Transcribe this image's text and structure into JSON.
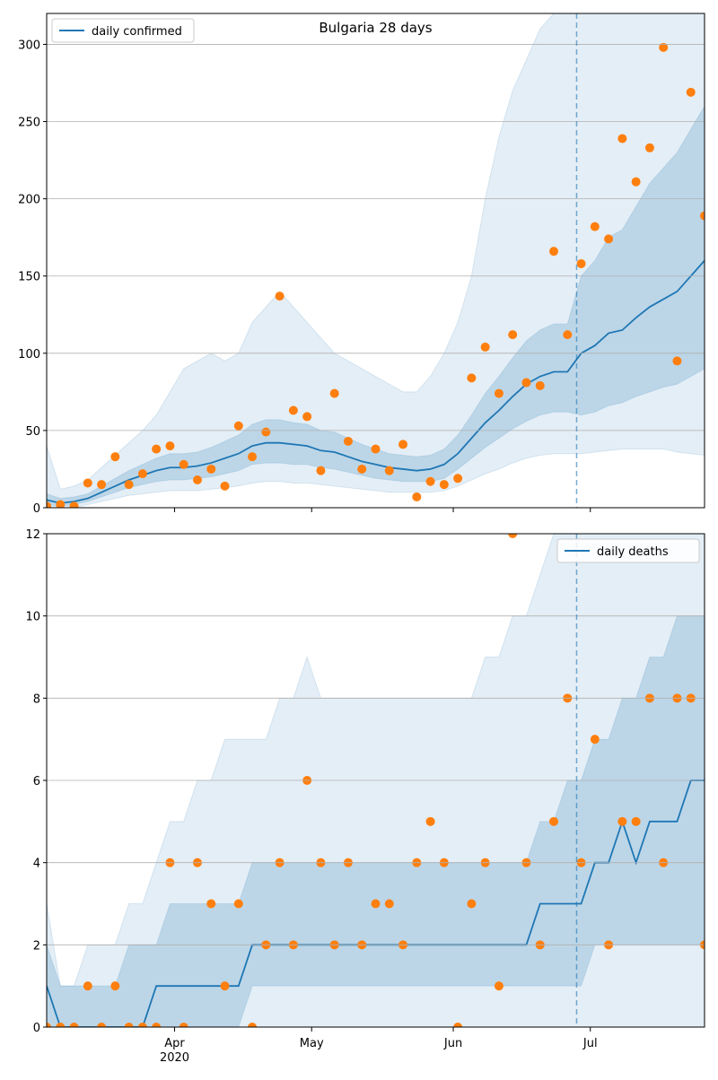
{
  "chart_data": [
    {
      "type": "line",
      "title": "Bulgaria 28 days",
      "legend": "upper left",
      "grid": true,
      "forecast_start": 116,
      "x": [
        0,
        3,
        6,
        9,
        12,
        15,
        18,
        21,
        24,
        27,
        30,
        33,
        36,
        39,
        42,
        45,
        48,
        51,
        54,
        57,
        60,
        63,
        66,
        69,
        72,
        75,
        78,
        81,
        84,
        87,
        90,
        93,
        96,
        99,
        102,
        105,
        108,
        111,
        114,
        117,
        120,
        123,
        126,
        129,
        132,
        135,
        138,
        141,
        144
      ],
      "xlim": [
        0,
        144
      ],
      "ylim": [
        0,
        320
      ],
      "yticks": [
        0,
        50,
        100,
        150,
        200,
        250,
        300
      ],
      "series": [
        {
          "name": "daily confirmed",
          "color": "#1f77b4",
          "values": [
            5,
            3,
            4,
            6,
            10,
            14,
            18,
            21,
            24,
            26,
            26,
            27,
            29,
            32,
            35,
            40,
            42,
            42,
            41,
            40,
            37,
            36,
            33,
            30,
            28,
            26,
            25,
            24,
            25,
            28,
            35,
            45,
            55,
            63,
            72,
            80,
            85,
            88,
            88,
            100,
            105,
            113,
            115,
            123,
            130,
            135,
            140,
            150,
            160
          ]
        }
      ],
      "observed": {
        "color": "#ff7f0e",
        "values": [
          1,
          2,
          1,
          16,
          15,
          33,
          15,
          22,
          38,
          40,
          28,
          18,
          25,
          14,
          53,
          33,
          49,
          137,
          63,
          59,
          24,
          74,
          43,
          25,
          38,
          24,
          41,
          7,
          17,
          15,
          19,
          84,
          104,
          74,
          112,
          81,
          79,
          166,
          112,
          158,
          182,
          174,
          239,
          211,
          233,
          298,
          95,
          269,
          189
        ]
      },
      "bands": [
        {
          "lower": [
            0,
            0,
            0,
            2,
            4,
            6,
            8,
            9,
            10,
            11,
            11,
            11,
            12,
            13,
            14,
            16,
            17,
            17,
            16,
            16,
            15,
            14,
            13,
            12,
            11,
            10,
            10,
            10,
            10,
            11,
            14,
            18,
            22,
            25,
            29,
            32,
            34,
            35,
            35,
            35,
            36,
            37,
            38,
            38,
            38,
            38,
            36,
            35,
            34
          ],
          "upper": [
            40,
            12,
            14,
            18,
            26,
            34,
            42,
            50,
            60,
            75,
            90,
            95,
            100,
            95,
            100,
            120,
            130,
            140,
            130,
            120,
            110,
            100,
            95,
            90,
            85,
            80,
            75,
            75,
            85,
            100,
            120,
            150,
            200,
            240,
            270,
            290,
            310,
            320,
            330,
            350,
            350,
            350,
            350,
            350,
            350,
            350,
            350,
            350,
            350
          ]
        },
        {
          "lower": [
            2,
            1,
            2,
            4,
            7,
            10,
            13,
            15,
            17,
            18,
            18,
            19,
            20,
            22,
            24,
            28,
            29,
            29,
            28,
            28,
            26,
            25,
            23,
            21,
            19,
            18,
            17,
            17,
            17,
            19,
            25,
            32,
            39,
            45,
            51,
            56,
            60,
            62,
            62,
            60,
            62,
            66,
            68,
            72,
            75,
            78,
            80,
            85,
            90
          ],
          "upper": [
            9,
            6,
            7,
            9,
            14,
            19,
            24,
            28,
            32,
            35,
            35,
            36,
            39,
            43,
            47,
            54,
            57,
            57,
            55,
            54,
            50,
            49,
            45,
            41,
            38,
            35,
            34,
            33,
            34,
            38,
            47,
            60,
            74,
            85,
            97,
            108,
            115,
            119,
            119,
            150,
            160,
            175,
            180,
            195,
            210,
            220,
            230,
            245,
            260
          ]
        }
      ]
    },
    {
      "type": "line",
      "legend": "upper right",
      "grid": true,
      "forecast_start": 116,
      "x": [
        0,
        3,
        6,
        9,
        12,
        15,
        18,
        21,
        24,
        27,
        30,
        33,
        36,
        39,
        42,
        45,
        48,
        51,
        54,
        57,
        60,
        63,
        66,
        69,
        72,
        75,
        78,
        81,
        84,
        87,
        90,
        93,
        96,
        99,
        102,
        105,
        108,
        111,
        114,
        117,
        120,
        123,
        126,
        129,
        132,
        135,
        138,
        141,
        144
      ],
      "xlim": [
        0,
        144
      ],
      "ylim": [
        0,
        12
      ],
      "yticks": [
        0,
        2,
        4,
        6,
        8,
        10,
        12
      ],
      "xticks": [
        {
          "value": 28,
          "label": "Apr"
        },
        {
          "value": 58,
          "label": "May"
        },
        {
          "value": 89,
          "label": "Jun"
        },
        {
          "value": 119,
          "label": "Jul"
        }
      ],
      "year_label": "2020",
      "series": [
        {
          "name": "daily deaths",
          "color": "#1f77b4",
          "values": [
            1,
            0,
            0,
            0,
            0,
            0,
            0,
            0,
            1,
            1,
            1,
            1,
            1,
            1,
            1,
            2,
            2,
            2,
            2,
            2,
            2,
            2,
            2,
            2,
            2,
            2,
            2,
            2,
            2,
            2,
            2,
            2,
            2,
            2,
            2,
            2,
            3,
            3,
            3,
            3,
            4,
            4,
            5,
            4,
            5,
            5,
            5,
            6,
            6
          ]
        }
      ],
      "observed": {
        "color": "#ff7f0e",
        "values": [
          0,
          0,
          0,
          1,
          0,
          1,
          0,
          0,
          0,
          4,
          0,
          4,
          3,
          1,
          3,
          0,
          2,
          4,
          2,
          6,
          4,
          2,
          4,
          2,
          3,
          3,
          2,
          4,
          5,
          4,
          0,
          3,
          4,
          1,
          12,
          4,
          2,
          5,
          8,
          4,
          7,
          2,
          5,
          5,
          8,
          4,
          8,
          8,
          2
        ]
      },
      "bands": [
        {
          "lower": [
            0,
            0,
            0,
            0,
            0,
            0,
            0,
            0,
            0,
            0,
            0,
            0,
            0,
            0,
            0,
            0,
            0,
            0,
            0,
            0,
            0,
            0,
            0,
            0,
            0,
            0,
            0,
            0,
            0,
            0,
            0,
            0,
            0,
            0,
            0,
            0,
            0,
            0,
            0,
            0,
            0,
            0,
            0,
            0,
            0,
            0,
            0,
            0,
            0
          ],
          "upper": [
            3,
            1,
            1,
            2,
            2,
            2,
            3,
            3,
            4,
            5,
            5,
            6,
            6,
            7,
            7,
            7,
            7,
            8,
            8,
            9,
            8,
            8,
            8,
            8,
            8,
            8,
            8,
            8,
            8,
            8,
            8,
            8,
            9,
            9,
            10,
            10,
            11,
            12,
            12,
            13,
            13,
            13,
            13,
            13,
            13,
            13,
            13,
            13,
            13
          ]
        },
        {
          "lower": [
            0,
            0,
            0,
            0,
            0,
            0,
            0,
            0,
            0,
            0,
            0,
            0,
            0,
            0,
            0,
            1,
            1,
            1,
            1,
            1,
            1,
            1,
            1,
            1,
            1,
            1,
            1,
            1,
            1,
            1,
            1,
            1,
            1,
            1,
            1,
            1,
            1,
            1,
            1,
            1,
            2,
            2,
            2,
            2,
            2,
            2,
            2,
            2,
            2
          ],
          "upper": [
            2,
            1,
            1,
            1,
            1,
            1,
            2,
            2,
            2,
            3,
            3,
            3,
            3,
            3,
            3,
            4,
            4,
            4,
            4,
            4,
            4,
            4,
            4,
            4,
            4,
            4,
            4,
            4,
            4,
            4,
            4,
            4,
            4,
            4,
            4,
            4,
            5,
            5,
            6,
            6,
            7,
            7,
            8,
            8,
            9,
            9,
            10,
            10,
            10
          ]
        }
      ]
    }
  ]
}
